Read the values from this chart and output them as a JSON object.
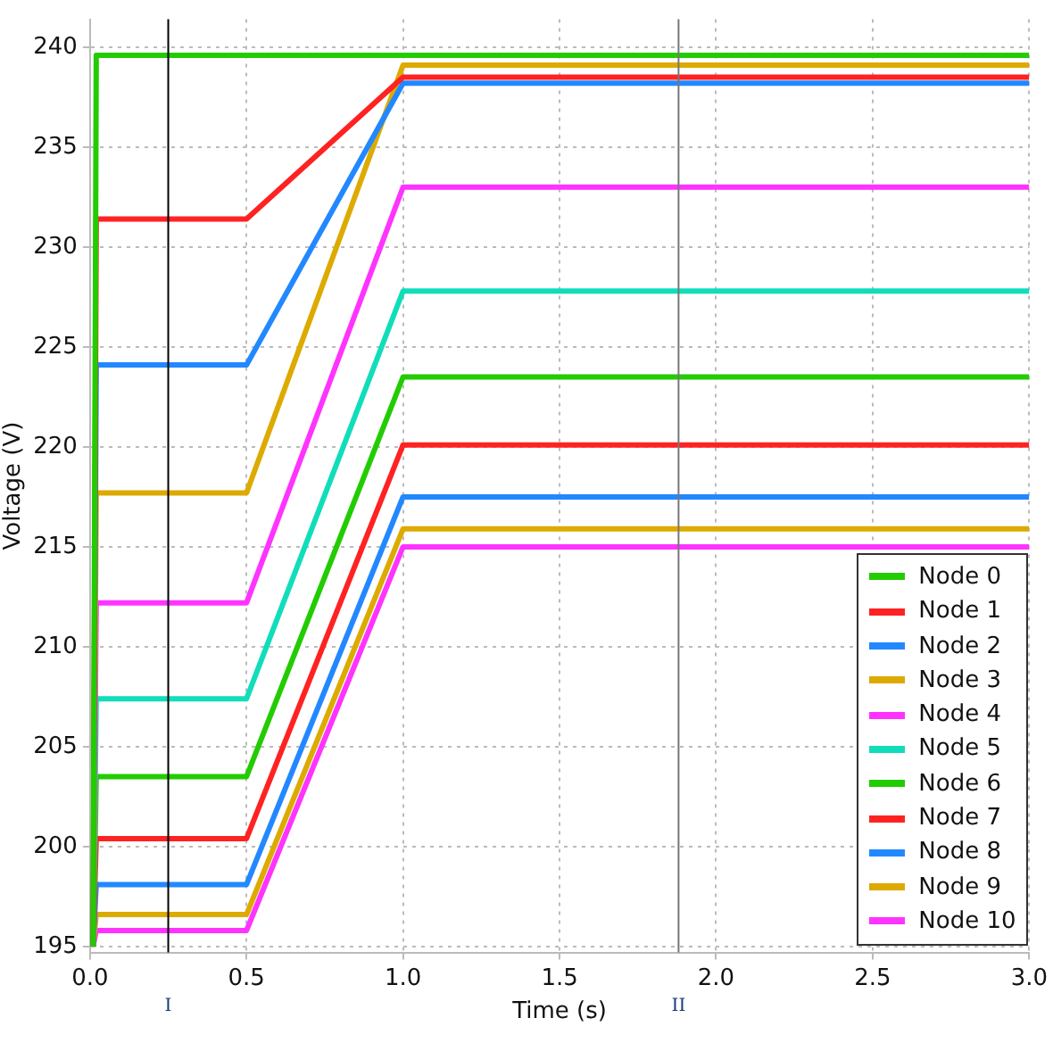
{
  "chart_data": {
    "type": "line",
    "xlabel": "Time (s)",
    "ylabel": "Voltage (V)",
    "x": [
      0.01,
      0.02,
      0.5,
      1.0,
      3.0
    ],
    "series": [
      {
        "name": "Node 0",
        "color": "#22cc00",
        "values": [
          195,
          239.6,
          239.6,
          239.6,
          239.6
        ]
      },
      {
        "name": "Node 1",
        "color": "#ff2222",
        "values": [
          195,
          231.4,
          231.4,
          238.5,
          238.5
        ]
      },
      {
        "name": "Node 2",
        "color": "#2288ff",
        "values": [
          195,
          224.1,
          224.1,
          238.2,
          238.2
        ]
      },
      {
        "name": "Node 3",
        "color": "#ddaa00",
        "values": [
          195,
          217.7,
          217.7,
          239.1,
          239.1
        ]
      },
      {
        "name": "Node 4",
        "color": "#ff33ff",
        "values": [
          195,
          212.2,
          212.2,
          233.0,
          233.0
        ]
      },
      {
        "name": "Node 5",
        "color": "#11ddbb",
        "values": [
          195,
          207.4,
          207.4,
          227.8,
          227.8
        ]
      },
      {
        "name": "Node 6",
        "color": "#22cc00",
        "values": [
          195,
          203.5,
          203.5,
          223.5,
          223.5
        ]
      },
      {
        "name": "Node 7",
        "color": "#ff2222",
        "values": [
          195,
          200.4,
          200.4,
          220.1,
          220.1
        ]
      },
      {
        "name": "Node 8",
        "color": "#2288ff",
        "values": [
          195,
          198.1,
          198.1,
          217.5,
          217.5
        ]
      },
      {
        "name": "Node 9",
        "color": "#ddaa00",
        "values": [
          195,
          196.6,
          196.6,
          215.9,
          215.9
        ]
      },
      {
        "name": "Node 10",
        "color": "#ff33ff",
        "values": [
          195,
          195.8,
          195.8,
          215.0,
          215.0
        ]
      }
    ],
    "xlim": [
      0,
      3
    ],
    "xticks": [
      {
        "value": 0,
        "label": "0.0"
      },
      {
        "value": 0.5,
        "label": "0.5"
      },
      {
        "value": 1,
        "label": "1.0"
      },
      {
        "value": 1.5,
        "label": "1.5"
      },
      {
        "value": 2,
        "label": "2.0"
      },
      {
        "value": 2.5,
        "label": "2.5"
      },
      {
        "value": 3,
        "label": "3.0"
      }
    ],
    "ylim": [
      194.7,
      241.4
    ],
    "yticks": [
      195,
      200,
      205,
      210,
      215,
      220,
      225,
      230,
      235,
      240
    ],
    "ref_lines": [
      {
        "axis": "x",
        "value": 0.25,
        "label": "I",
        "color": "#000000"
      },
      {
        "axis": "x",
        "value": 1.88,
        "label": "II",
        "color": "#777777"
      }
    ],
    "grid": true,
    "legend": "bottom right",
    "marker": "none",
    "line_style": "solid"
  }
}
